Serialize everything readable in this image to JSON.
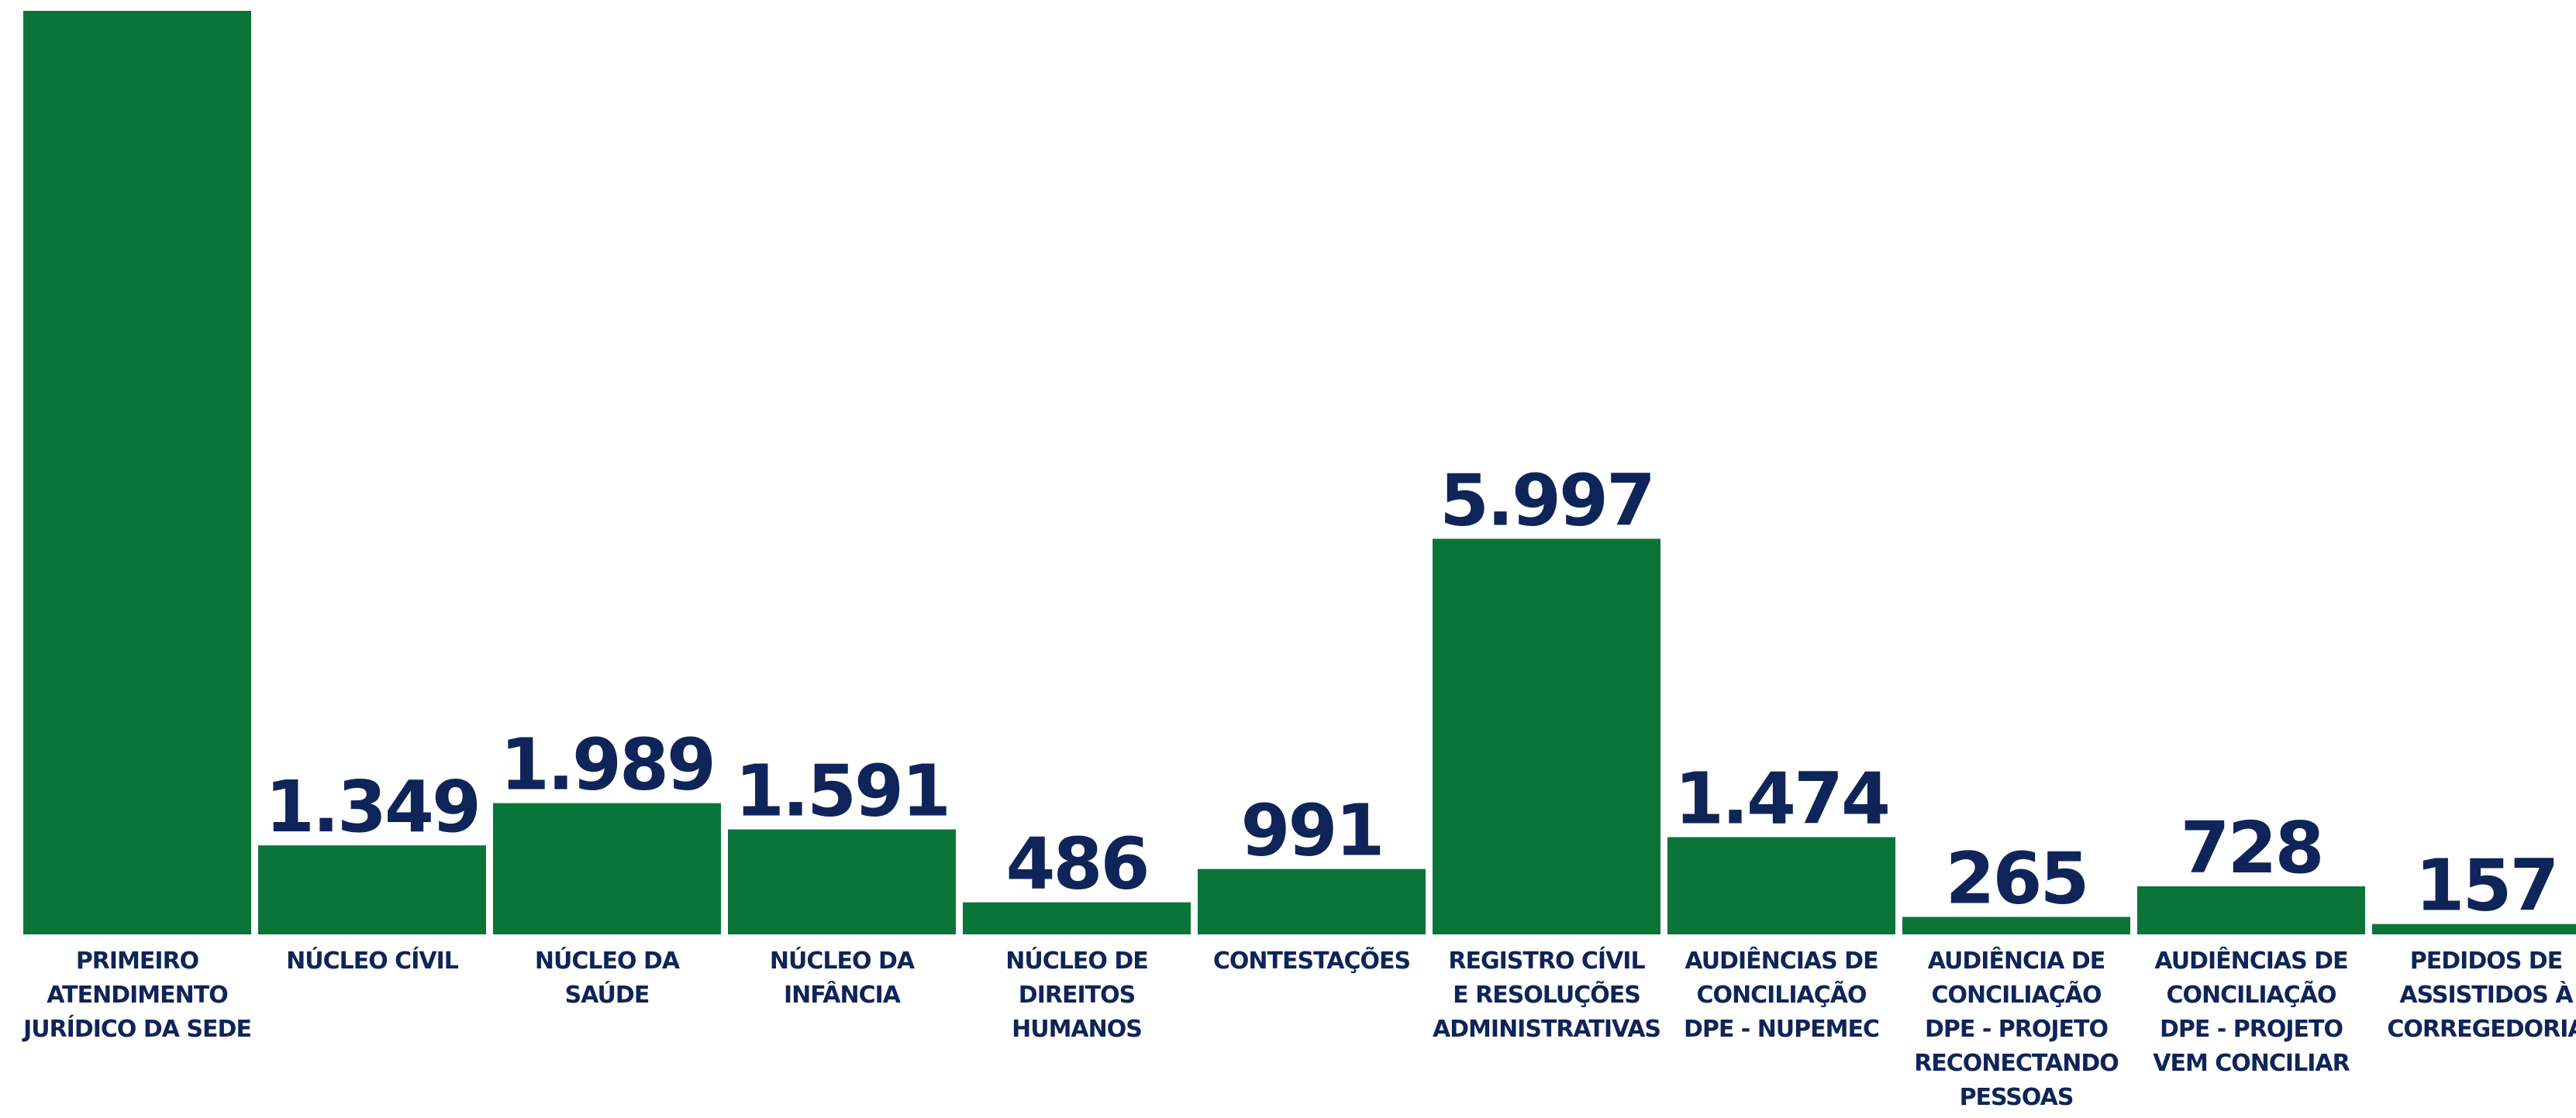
{
  "chart_data": {
    "type": "bar",
    "title": "",
    "xlabel": "",
    "ylabel": "",
    "colors": {
      "bar": "#0a7439",
      "text": "#0f2459",
      "background": "#ffffff"
    },
    "categories": [
      [
        "PRIMEIRO",
        "ATENDIMENTO",
        "JURÍDICO DA SEDE"
      ],
      [
        "NÚCLEO CÍVIL"
      ],
      [
        "NÚCLEO DA",
        "SAÚDE"
      ],
      [
        "NÚCLEO DA",
        "INFÂNCIA"
      ],
      [
        "NÚCLEO DE",
        "DIREITOS",
        "HUMANOS"
      ],
      [
        "CONTESTAÇÕES"
      ],
      [
        "REGISTRO CÍVIL",
        "E RESOLUÇÕES",
        "ADMINISTRATIVAS"
      ],
      [
        "AUDIÊNCIAS DE",
        "CONCILIAÇÃO",
        "DPE - NUPEMEC"
      ],
      [
        "AUDIÊNCIA DE",
        "CONCILIAÇÃO",
        "DPE - PROJETO",
        "RECONECTANDO",
        "PESSOAS"
      ],
      [
        "AUDIÊNCIAS DE",
        "CONCILIAÇÃO",
        "DPE - PROJETO",
        "VEM CONCILIAR"
      ],
      [
        "PEDIDOS DE",
        "ASSISTIDOS À",
        "CORREGEDORIA"
      ]
    ],
    "values": [
      14000,
      1349,
      1989,
      1591,
      486,
      991,
      5997,
      1474,
      265,
      728,
      157
    ],
    "value_labels": [
      "",
      "1.349",
      "1.989",
      "1.591",
      "486",
      "991",
      "5.997",
      "1.474",
      "265",
      "728",
      "157"
    ],
    "ylim": [
      0,
      14000
    ],
    "grid": false,
    "legend": "none"
  }
}
